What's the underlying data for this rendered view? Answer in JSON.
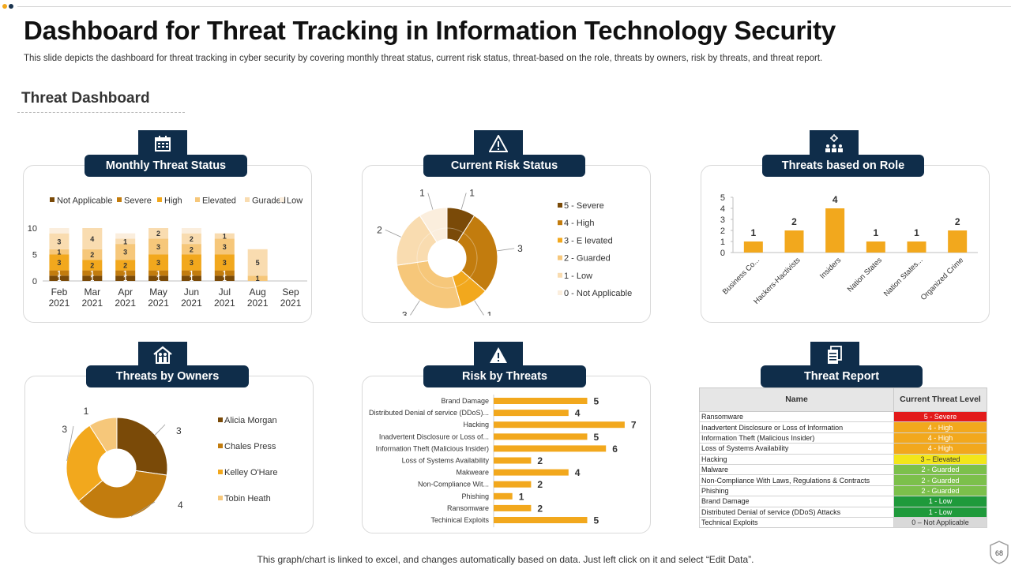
{
  "slide": {
    "title": "Dashboard for Threat Tracking in Information Technology Security",
    "subtitle": "This slide depicts the dashboard for threat tracking in cyber security by covering monthly threat status, current risk status, threat-based on the role, threats by owners, risk by threats, and threat report.",
    "section_title": "Threat Dashboard",
    "footer": "This graph/chart is linked to excel,  and changes automatically based on data. Just left click on it and select “Edit Data”.",
    "page_number": "68"
  },
  "panels": {
    "monthly": {
      "title": "Monthly Threat Status",
      "icon": "calendar-icon"
    },
    "risk": {
      "title": "Current Risk Status",
      "icon": "warning-icon"
    },
    "role": {
      "title": "Threats based on Role",
      "icon": "team-icon"
    },
    "owners": {
      "title": "Threats by Owners",
      "icon": "house-people-icon"
    },
    "riskthreats": {
      "title": "Risk by Threats",
      "icon": "warning-icon"
    },
    "report": {
      "title": "Threat Report",
      "icon": "document-icon"
    }
  },
  "colors": {
    "dark": "#7a4a08",
    "mid": "#c27c0e",
    "orange": "#f2a81d",
    "light": "#f6c77a",
    "pale": "#f9dcb0",
    "faint": "#fbeedd",
    "navy": "#0f2d4a"
  },
  "chart_data": [
    {
      "id": "monthly",
      "type": "bar",
      "stacked": true,
      "categories": [
        "Feb 2021",
        "Mar 2021",
        "Apr 2021",
        "May 2021",
        "Jun 2021",
        "Jul 2021",
        "Aug 2021",
        "Sep 2021"
      ],
      "series": [
        {
          "name": "Not Applicable",
          "color": "#7a4a08",
          "values": [
            1,
            1,
            1,
            1,
            1,
            1,
            0,
            0
          ]
        },
        {
          "name": "Severe",
          "color": "#c27c0e",
          "values": [
            1,
            1,
            1,
            1,
            1,
            1,
            0,
            0
          ]
        },
        {
          "name": "High",
          "color": "#f2a81d",
          "values": [
            3,
            2,
            2,
            3,
            3,
            3,
            0,
            0
          ]
        },
        {
          "name": "Elevated",
          "color": "#f6c77a",
          "values": [
            1,
            2,
            3,
            3,
            2,
            3,
            1,
            0
          ]
        },
        {
          "name": "Guraded",
          "color": "#f9dcb0",
          "values": [
            3,
            4,
            1,
            2,
            2,
            1,
            5,
            0
          ]
        },
        {
          "name": "Low",
          "color": "#fbeedd",
          "values": [
            1,
            0,
            1,
            0,
            1,
            0,
            0,
            0
          ]
        }
      ],
      "ylim": [
        0,
        10
      ],
      "yticks": [
        0,
        5,
        10
      ],
      "legend": "top"
    },
    {
      "id": "risk",
      "type": "pie",
      "variant": "donut",
      "labels": [
        "5 - Severe",
        "4 - High",
        "3 - E levated",
        "2 - Guarded",
        "1 - Low",
        "0 - Not Applicable"
      ],
      "values": [
        1,
        3,
        1,
        3,
        2,
        1
      ],
      "colors": [
        "#7a4a08",
        "#c27c0e",
        "#f2a81d",
        "#f6c77a",
        "#f9dcb0",
        "#fbeedd"
      ],
      "legend": "right"
    },
    {
      "id": "role",
      "type": "bar",
      "categories": [
        "Business Co...",
        "Hackers-Hactivists",
        "Insiders",
        "Nation States",
        "Nation States...",
        "Organized Crime"
      ],
      "values": [
        1,
        2,
        4,
        1,
        1,
        2
      ],
      "ylim": [
        0,
        5
      ],
      "yticks": [
        0,
        1,
        2,
        3,
        4,
        5
      ],
      "color": "#f2a81d"
    },
    {
      "id": "owners",
      "type": "pie",
      "variant": "donut",
      "labels": [
        "Alicia Morgan",
        "Chales Press",
        "Kelley O'Hare",
        "Tobin Heath"
      ],
      "values": [
        3,
        4,
        3,
        1
      ],
      "colors": [
        "#7a4a08",
        "#c27c0e",
        "#f2a81d",
        "#f6c77a"
      ],
      "legend": "right"
    },
    {
      "id": "riskthreats",
      "type": "bar",
      "orientation": "horizontal",
      "categories": [
        "Brand Damage",
        "Distributed Denial of service (DDoS)...",
        "Hacking",
        "Inadvertent Disclosure or Loss of...",
        "Information Theft (Malicious Insider)",
        "Loss of Systems Availability",
        "Makweare",
        "Non-Compliance Wit...",
        "Phishing",
        "Ransomware",
        "Techinical Exploits"
      ],
      "values": [
        5,
        4,
        7,
        5,
        6,
        2,
        4,
        2,
        1,
        2,
        5
      ],
      "color": "#f2a81d"
    }
  ],
  "report": {
    "headers": [
      "Name",
      "Current Threat Level"
    ],
    "rows": [
      {
        "name": "Ransomware",
        "level": "5 - Severe",
        "color": "#e31b1b"
      },
      {
        "name": "Inadvertent Disclosure or Loss of Information",
        "level": "4 - High",
        "color": "#f2a81d"
      },
      {
        "name": "Information Theft (Malicious Insider)",
        "level": "4 - High",
        "color": "#f2a81d"
      },
      {
        "name": "Loss of Systems Availability",
        "level": "4 - High",
        "color": "#f2a81d"
      },
      {
        "name": "Hacking",
        "level": "3 – Elevated",
        "color": "#f3e61a"
      },
      {
        "name": "Malware",
        "level": "2 - Guarded",
        "color": "#7cc04b"
      },
      {
        "name": "Non-Compliance With Laws, Regulations & Contracts",
        "level": "2 - Guarded",
        "color": "#7cc04b"
      },
      {
        "name": "Phishing",
        "level": "2 - Guarded",
        "color": "#7cc04b"
      },
      {
        "name": "Brand Damage",
        "level": "1 - Low",
        "color": "#1f9a3b"
      },
      {
        "name": "Distributed Denial of service (DDoS) Attacks",
        "level": "1 - Low",
        "color": "#1f9a3b"
      },
      {
        "name": "Technical Exploits",
        "level": "0 – Not Applicable",
        "color": "#d9d9d9"
      }
    ]
  }
}
